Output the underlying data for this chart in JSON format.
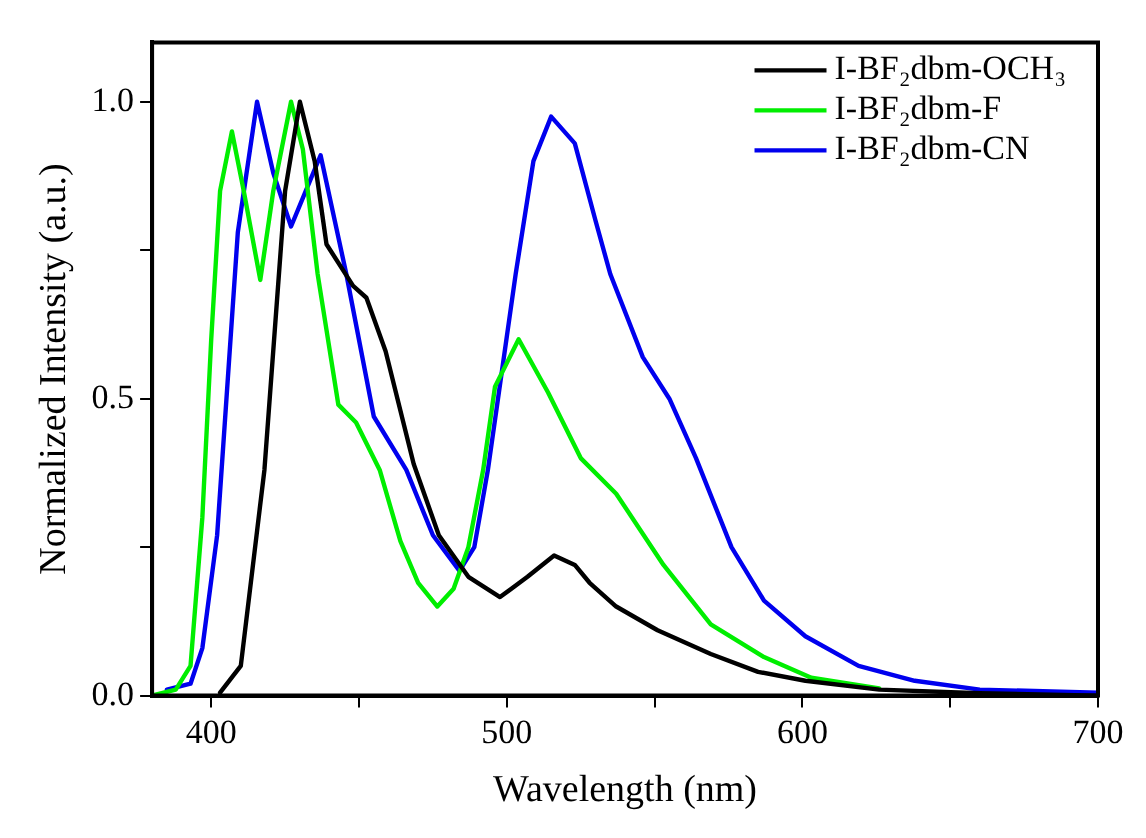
{
  "chart_data": {
    "type": "line",
    "xlabel": "Wavelength (nm)",
    "ylabel": "Normalized Intensity (a.u.)",
    "xlim": [
      380,
      700
    ],
    "ylim": [
      0,
      1.1
    ],
    "xticks": [
      400,
      {
        "value": 450,
        "label": null
      },
      500,
      {
        "value": 550,
        "label": null
      },
      600,
      {
        "value": 650,
        "label": null
      },
      700
    ],
    "yticks": [
      {
        "value": 0,
        "label": "0.0"
      },
      {
        "value": 0.25,
        "label": null
      },
      {
        "value": 0.5,
        "label": "0.5"
      },
      {
        "value": 0.75,
        "label": null
      },
      {
        "value": 1,
        "label": "1.0"
      }
    ],
    "grid": false,
    "legend": "top right",
    "marker": "none",
    "line_style": "solid",
    "series": [
      {
        "name": "I-BF₂dbm-OCH₃",
        "color": "#000000",
        "x": [
          403,
          410,
          418,
          425,
          430,
          435,
          439,
          448,
          452.5,
          459,
          468.5,
          477,
          487,
          497.7,
          507,
          516,
          523,
          528,
          537,
          551,
          569,
          585,
          601,
          626,
          660,
          700
        ],
        "values": [
          0.005,
          0.05,
          0.38,
          0.85,
          1.0,
          0.9,
          0.76,
          0.69,
          0.67,
          0.58,
          0.39,
          0.27,
          0.2,
          0.166,
          0.2,
          0.236,
          0.22,
          0.19,
          0.15,
          0.11,
          0.07,
          0.04,
          0.025,
          0.01,
          0.004,
          0
        ]
      },
      {
        "name": "I-BF₂dbm-F",
        "color": "#00ee00",
        "x": [
          380,
          388,
          393,
          397,
          400,
          403,
          407,
          411,
          416.6,
          421,
          427,
          431,
          436,
          443,
          449,
          457,
          464,
          470,
          476.5,
          482,
          487,
          492,
          496,
          504,
          514,
          525,
          537,
          553,
          569,
          587,
          603,
          626
        ],
        "values": [
          0,
          0.01,
          0.05,
          0.3,
          0.6,
          0.85,
          0.95,
          0.85,
          0.7,
          0.85,
          1.0,
          0.92,
          0.71,
          0.49,
          0.46,
          0.38,
          0.26,
          0.19,
          0.15,
          0.18,
          0.25,
          0.38,
          0.52,
          0.6,
          0.51,
          0.4,
          0.34,
          0.22,
          0.12,
          0.065,
          0.03,
          0.012
        ]
      },
      {
        "name": "I-BF₂dbm-CN",
        "color": "#0000ee",
        "x": [
          385,
          393,
          397,
          402,
          409,
          415.5,
          421,
          427,
          432,
          437,
          445.7,
          455,
          466,
          475,
          484,
          489,
          493.6,
          503,
          509,
          515,
          523,
          530,
          535,
          546,
          555,
          564,
          576,
          587,
          601,
          619,
          638,
          660,
          700
        ],
        "values": [
          0.01,
          0.02,
          0.08,
          0.27,
          0.78,
          1.0,
          0.88,
          0.79,
          0.85,
          0.91,
          0.71,
          0.47,
          0.38,
          0.27,
          0.21,
          0.25,
          0.38,
          0.71,
          0.9,
          0.975,
          0.93,
          0.8,
          0.71,
          0.57,
          0.5,
          0.4,
          0.25,
          0.16,
          0.1,
          0.05,
          0.025,
          0.01,
          0.005
        ]
      }
    ]
  }
}
